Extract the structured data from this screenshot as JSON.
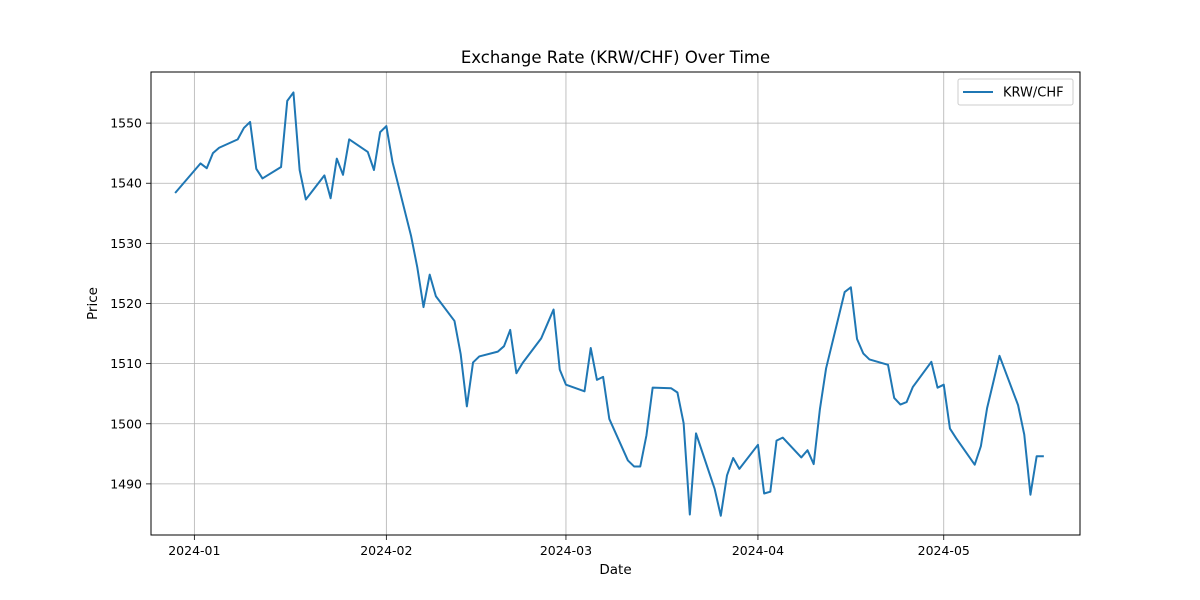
{
  "chart_data": {
    "type": "line",
    "title": "Exchange Rate (KRW/CHF) Over Time",
    "xlabel": "Date",
    "ylabel": "Price",
    "xlim": [
      "2023-12-25",
      "2024-05-23"
    ],
    "ylim": [
      1481.5,
      1558.5
    ],
    "x_ticks": [
      "2024-01",
      "2024-02",
      "2024-03",
      "2024-04",
      "2024-05"
    ],
    "x_tick_dates": [
      "2024-01-01",
      "2024-02-01",
      "2024-03-01",
      "2024-04-01",
      "2024-05-01"
    ],
    "y_ticks": [
      1490,
      1500,
      1510,
      1520,
      1530,
      1540,
      1550
    ],
    "grid": true,
    "legend": "top-right",
    "series": [
      {
        "name": "KRW/CHF",
        "color": "#1f77b4",
        "x": [
          "2023-12-29",
          "2024-01-02",
          "2024-01-03",
          "2024-01-04",
          "2024-01-05",
          "2024-01-08",
          "2024-01-09",
          "2024-01-10",
          "2024-01-11",
          "2024-01-12",
          "2024-01-15",
          "2024-01-16",
          "2024-01-17",
          "2024-01-18",
          "2024-01-19",
          "2024-01-22",
          "2024-01-23",
          "2024-01-24",
          "2024-01-25",
          "2024-01-26",
          "2024-01-29",
          "2024-01-30",
          "2024-01-31",
          "2024-02-01",
          "2024-02-02",
          "2024-02-05",
          "2024-02-06",
          "2024-02-07",
          "2024-02-08",
          "2024-02-09",
          "2024-02-12",
          "2024-02-13",
          "2024-02-14",
          "2024-02-15",
          "2024-02-16",
          "2024-02-19",
          "2024-02-20",
          "2024-02-21",
          "2024-02-22",
          "2024-02-23",
          "2024-02-26",
          "2024-02-27",
          "2024-02-28",
          "2024-02-29",
          "2024-03-01",
          "2024-03-04",
          "2024-03-05",
          "2024-03-06",
          "2024-03-07",
          "2024-03-08",
          "2024-03-11",
          "2024-03-12",
          "2024-03-13",
          "2024-03-14",
          "2024-03-15",
          "2024-03-18",
          "2024-03-19",
          "2024-03-20",
          "2024-03-21",
          "2024-03-22",
          "2024-03-25",
          "2024-03-26",
          "2024-03-27",
          "2024-03-28",
          "2024-03-29",
          "2024-04-01",
          "2024-04-02",
          "2024-04-03",
          "2024-04-04",
          "2024-04-05",
          "2024-04-08",
          "2024-04-09",
          "2024-04-10",
          "2024-04-11",
          "2024-04-12",
          "2024-04-15",
          "2024-04-16",
          "2024-04-17",
          "2024-04-18",
          "2024-04-19",
          "2024-04-22",
          "2024-04-23",
          "2024-04-24",
          "2024-04-25",
          "2024-04-26",
          "2024-04-29",
          "2024-04-30",
          "2024-05-01",
          "2024-05-02",
          "2024-05-03",
          "2024-05-06",
          "2024-05-07",
          "2024-05-08",
          "2024-05-09",
          "2024-05-10",
          "2024-05-13",
          "2024-05-14",
          "2024-05-15",
          "2024-05-16",
          "2024-05-17"
        ],
        "y": [
          1538.5,
          1543.3,
          1542.5,
          1545.0,
          1545.9,
          1547.3,
          1549.2,
          1550.2,
          1542.4,
          1540.8,
          1542.7,
          1553.7,
          1555.1,
          1542.2,
          1537.3,
          1541.3,
          1537.5,
          1544.1,
          1541.4,
          1547.3,
          1545.2,
          1542.2,
          1548.5,
          1549.5,
          1543.5,
          1531.2,
          1526.0,
          1519.4,
          1524.8,
          1521.2,
          1517.1,
          1511.6,
          1502.9,
          1510.2,
          1511.2,
          1512.0,
          1512.9,
          1515.6,
          1508.4,
          1510.1,
          1514.2,
          1516.6,
          1519.0,
          1509.0,
          1506.5,
          1505.4,
          1512.6,
          1507.3,
          1507.8,
          1500.8,
          1493.9,
          1492.9,
          1492.9,
          1498.1,
          1506.0,
          1505.9,
          1505.2,
          1500.1,
          1484.9,
          1498.4,
          1489.2,
          1484.7,
          1491.4,
          1494.3,
          1492.5,
          1496.5,
          1488.4,
          1488.7,
          1497.2,
          1497.7,
          1494.4,
          1495.6,
          1493.3,
          1502.4,
          1509.2,
          1521.9,
          1522.7,
          1514.1,
          1511.7,
          1510.7,
          1509.8,
          1504.3,
          1503.2,
          1503.6,
          1506.1,
          1510.3,
          1506.0,
          1506.5,
          1499.2,
          1497.6,
          1493.2,
          1496.3,
          1502.6,
          1506.9,
          1511.3,
          1503.1,
          1498.2,
          1488.2,
          1494.6,
          1494.6
        ]
      }
    ]
  }
}
